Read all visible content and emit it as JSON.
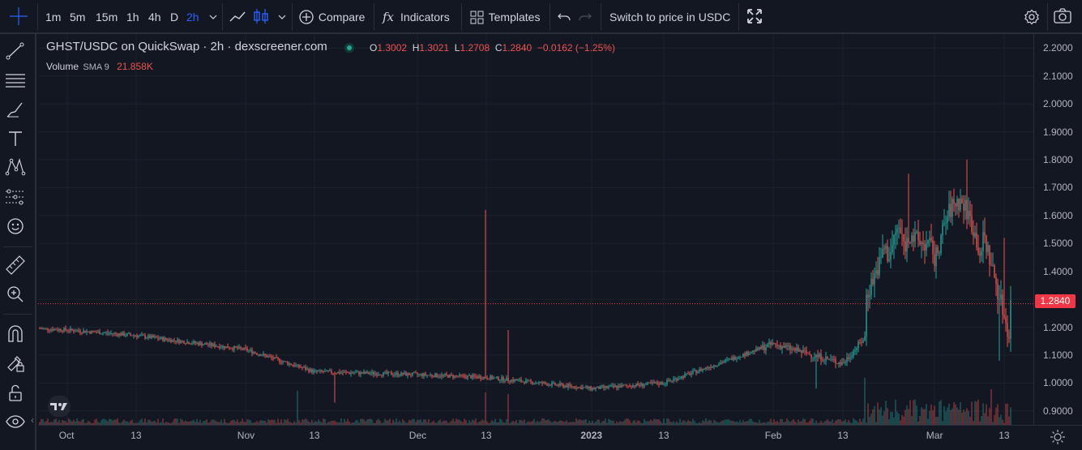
{
  "toolbar": {
    "timeframes": [
      "1m",
      "5m",
      "15m",
      "1h",
      "4h",
      "D",
      "2h"
    ],
    "active_timeframe": "2h",
    "compare_label": "Compare",
    "indicators_label": "Indicators",
    "templates_label": "Templates",
    "switch_label": "Switch to price in USDC"
  },
  "legend": {
    "title": "GHST/USDC on QuickSwap · 2h · dexscreener.com",
    "o_label": "O",
    "o_value": "1.3002",
    "h_label": "H",
    "h_value": "1.3021",
    "l_label": "L",
    "l_value": "1.2708",
    "c_label": "C",
    "c_value": "1.2840",
    "change": "−0.0162 (−1.25%)",
    "volume_label": "Volume",
    "sma_label": "SMA 9",
    "volume_value": "21.858K"
  },
  "price_axis": {
    "labels": [
      "2.2000",
      "2.1000",
      "2.0000",
      "1.9000",
      "1.8000",
      "1.7000",
      "1.6000",
      "1.5000",
      "1.4000",
      "1.3000",
      "1.2000",
      "1.1000",
      "1.0000",
      "0.9000"
    ],
    "current_price": "1.2840"
  },
  "time_axis": {
    "labels": [
      "Oct",
      "13",
      "Nov",
      "13",
      "Dec",
      "13",
      "2023",
      "13",
      "Feb",
      "13",
      "Mar",
      "13"
    ]
  },
  "colors": {
    "up": "#26a69a",
    "down": "#ef5350",
    "accent": "#2962ff",
    "background": "#131722"
  },
  "chart_data": {
    "type": "candlestick",
    "title": "GHST/USDC on QuickSwap · 2h · dexscreener.com",
    "x_ticks": [
      "Oct",
      "13",
      "Nov",
      "13",
      "Dec",
      "13",
      "2023",
      "13",
      "Feb",
      "13",
      "Mar",
      "13"
    ],
    "ylim": [
      0.85,
      2.25
    ],
    "price_path": [
      [
        "Oct",
        1.19
      ],
      [
        "13",
        1.17
      ],
      [
        "Nov",
        1.12
      ],
      [
        "13",
        1.04
      ],
      [
        "Dec",
        1.03
      ],
      [
        "13",
        1.02
      ],
      [
        "2023",
        0.98
      ],
      [
        "13",
        1.0
      ],
      [
        "Feb",
        1.14
      ],
      [
        "13",
        1.07
      ],
      [
        "Mar",
        1.46
      ],
      [
        "13",
        1.284
      ]
    ],
    "last_close": 1.284,
    "series": [
      {
        "name": "Volume",
        "sma": "SMA 9",
        "last": "21.858K"
      }
    ]
  }
}
